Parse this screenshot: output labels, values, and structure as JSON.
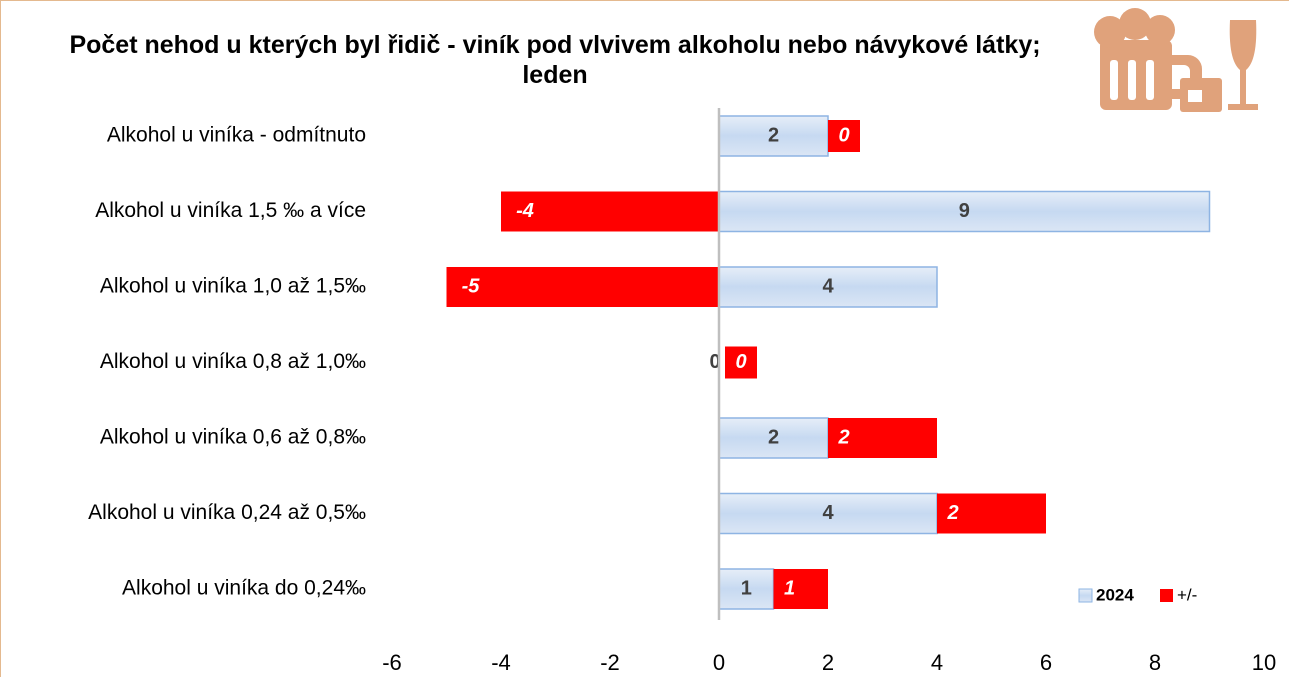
{
  "chart_data": {
    "type": "bar",
    "orientation": "horizontal",
    "stacked": true,
    "title": "Počet nehod u kterých byl řidič - viník pod vlvivem alkoholu nebo návykové látky; leden",
    "categories": [
      "Alkohol u viníka - odmítnuto",
      "Alkohol u viníka 1,5 ‰ a více",
      "Alkohol u viníka 1,0 až 1,5‰",
      "Alkohol u viníka 0,8 až 1,0‰",
      "Alkohol u viníka 0,6 až 0,8‰",
      "Alkohol u viníka 0,24 až 0,5‰",
      "Alkohol u viníka do 0,24‰"
    ],
    "series": [
      {
        "name": "2024",
        "color": "#c6d9f1",
        "values": [
          2,
          9,
          4,
          0,
          2,
          4,
          1
        ]
      },
      {
        "name": "+/-",
        "color": "#ff0000",
        "values": [
          0,
          -4,
          -5,
          0,
          2,
          2,
          1
        ]
      }
    ],
    "xlim": [
      -6,
      10
    ],
    "xticks": [
      -6,
      -4,
      -2,
      0,
      2,
      4,
      6,
      8,
      10
    ],
    "legend": "lower right",
    "grid": false
  }
}
